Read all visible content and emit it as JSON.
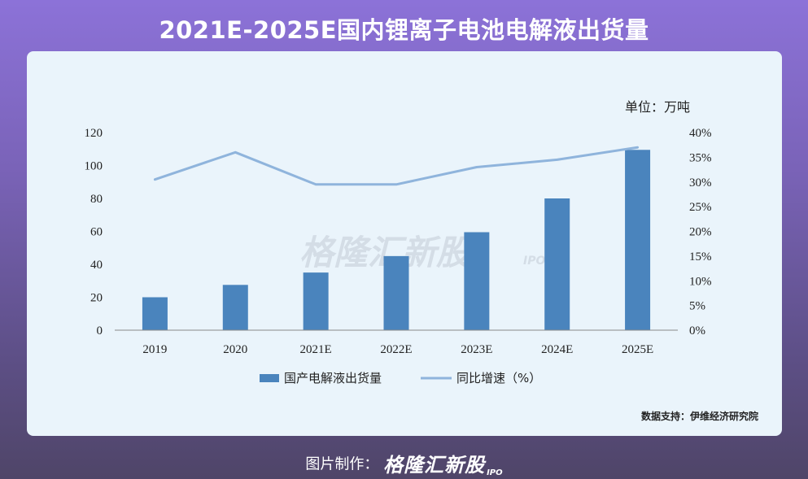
{
  "title": "2021E-2025E国内锂离子电池电解液出货量",
  "unit_label": "单位：万吨",
  "source": "数据支持：伊维经济研究院",
  "footer": {
    "label": "图片制作：",
    "brand": "格隆汇新股",
    "brand_suffix": "IPO"
  },
  "watermark": {
    "text": "格隆汇新股",
    "suffix": "IPO"
  },
  "colors": {
    "bar": "#4a84bd",
    "line": "#8fb4dc",
    "axis_text": "#222222"
  },
  "chart_data": {
    "type": "bar",
    "title": "2021E-2025E国内锂离子电池电解液出货量",
    "categories": [
      "2019",
      "2020",
      "2021E",
      "2022E",
      "2023E",
      "2024E",
      "2025E"
    ],
    "series": [
      {
        "name": "国产电解液出货量",
        "type": "bar",
        "axis": "left",
        "values": [
          20,
          27.5,
          35,
          45,
          59.5,
          80,
          109.5
        ]
      },
      {
        "name": "同比增速（%）",
        "type": "line",
        "axis": "right",
        "values": [
          30.5,
          36,
          29.5,
          29.5,
          33,
          34.5,
          37
        ]
      }
    ],
    "left_axis": {
      "min": 0,
      "max": 120,
      "ticks": [
        "0",
        "20",
        "40",
        "60",
        "80",
        "100",
        "120"
      ]
    },
    "right_axis": {
      "min": 0,
      "max": 40,
      "ticks": [
        "0%",
        "5%",
        "10%",
        "15%",
        "20%",
        "25%",
        "30%",
        "35%",
        "40%"
      ]
    },
    "xlabel": "",
    "ylabel": "",
    "grid": false,
    "legend": "bottom"
  }
}
